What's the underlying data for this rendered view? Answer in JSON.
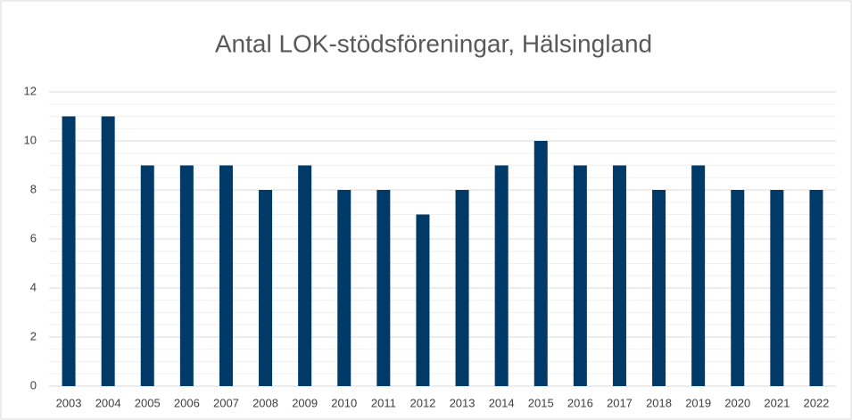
{
  "chart_data": {
    "type": "bar",
    "title": "Antal LOK-stödsföreningar, Hälsingland",
    "categories": [
      "2003",
      "2004",
      "2005",
      "2006",
      "2007",
      "2008",
      "2009",
      "2010",
      "2011",
      "2012",
      "2013",
      "2014",
      "2015",
      "2016",
      "2017",
      "2018",
      "2019",
      "2020",
      "2021",
      "2022"
    ],
    "values": [
      11,
      11,
      9,
      9,
      9,
      8,
      9,
      8,
      8,
      7,
      8,
      9,
      10,
      9,
      9,
      8,
      9,
      8,
      8,
      8
    ],
    "color": "#003a68",
    "ylim": [
      0,
      12
    ],
    "yticks": [
      0,
      2,
      4,
      6,
      8,
      10,
      12
    ],
    "grid": true,
    "minor_grid": true
  }
}
